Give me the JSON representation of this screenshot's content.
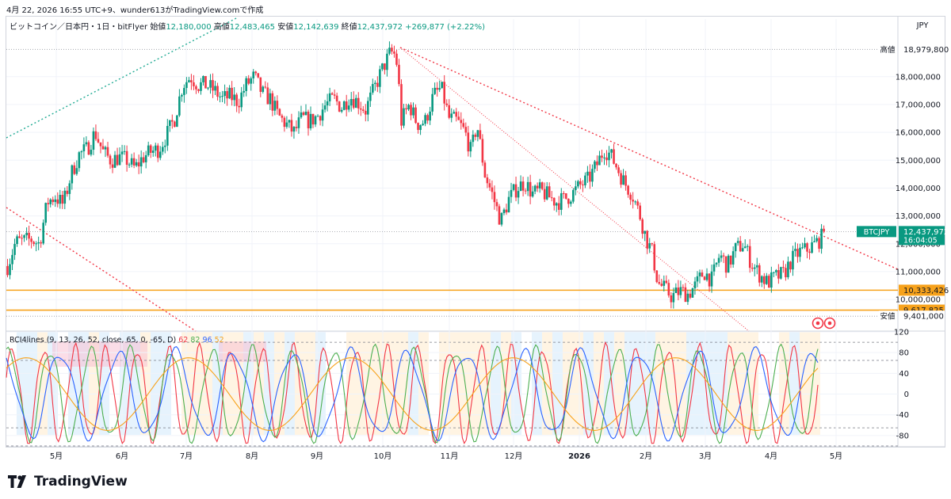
{
  "header": {
    "snapshot_line": "4月 22, 2026 16:55 UTC+9、wunder613がTradingView.comで作成"
  },
  "legend": {
    "symbol": "ビットコイン／日本円・1日・bitFlyer",
    "open_label": "始値",
    "open": "12,180,000",
    "high_label": "高値",
    "high": "12,483,465",
    "low_label": "安値",
    "low": "12,142,639",
    "close_label": "終値",
    "close": "12,437,972",
    "change": "+269,877 (+2.22%)"
  },
  "currency": "JPY",
  "colors": {
    "up": "#089981",
    "down": "#f23645",
    "support": "#f7a21b",
    "trend": "#f23645",
    "channel": "#22ab94",
    "rci_short": "#f23645",
    "rci_mid": "#4caf50",
    "rci_long": "#2962ff",
    "rci_extra": "#f7a21b"
  },
  "chart_data": [
    {
      "type": "candlestick",
      "title": "ビットコイン／日本円・1日・bitFlyer",
      "x_labels": [
        "5月",
        "6月",
        "7月",
        "8月",
        "9月",
        "10月",
        "11月",
        "12月",
        "2026",
        "2月",
        "3月",
        "4月",
        "5月"
      ],
      "y_ticks": [
        10000000,
        11000000,
        12000000,
        13000000,
        14000000,
        15000000,
        16000000,
        17000000,
        18000000
      ],
      "y_tick_labels": [
        "10,000,000",
        "11,000,000",
        "12,000,000",
        "13,000,000",
        "14,000,000",
        "15,000,000",
        "16,000,000",
        "17,000,000",
        "18,000,000"
      ],
      "ylim": [
        9150000,
        19500000
      ],
      "series_close_approx": [
        [
          0,
          11200000
        ],
        [
          8,
          12050000
        ],
        [
          16,
          12100000
        ],
        [
          24,
          12150000
        ],
        [
          32,
          12000000
        ],
        [
          40,
          13500000
        ],
        [
          48,
          13700000
        ],
        [
          56,
          13400000
        ],
        [
          64,
          14500000
        ],
        [
          72,
          15200000
        ],
        [
          80,
          15400000
        ],
        [
          88,
          16000000
        ],
        [
          96,
          15300000
        ],
        [
          104,
          15000000
        ],
        [
          112,
          15100000
        ],
        [
          120,
          15000000
        ],
        [
          128,
          14700000
        ],
        [
          136,
          15100000
        ],
        [
          144,
          15300000
        ],
        [
          152,
          15400000
        ],
        [
          160,
          15900000
        ],
        [
          168,
          16500000
        ],
        [
          176,
          17700000
        ],
        [
          184,
          18000000
        ],
        [
          192,
          17700000
        ],
        [
          200,
          17700000
        ],
        [
          208,
          17500000
        ],
        [
          216,
          17200000
        ],
        [
          224,
          17300000
        ],
        [
          232,
          17100000
        ],
        [
          240,
          17700000
        ],
        [
          248,
          18000000
        ],
        [
          256,
          17400000
        ],
        [
          264,
          17200000
        ],
        [
          272,
          16600000
        ],
        [
          280,
          16300000
        ],
        [
          288,
          16000000
        ],
        [
          296,
          16500000
        ],
        [
          304,
          16400000
        ],
        [
          312,
          16600000
        ],
        [
          320,
          17000000
        ],
        [
          328,
          17200000
        ],
        [
          336,
          16900000
        ],
        [
          344,
          17300000
        ],
        [
          352,
          17100000
        ],
        [
          360,
          16800000
        ],
        [
          368,
          17500000
        ],
        [
          376,
          18200000
        ],
        [
          384,
          18800000
        ],
        [
          388,
          18900000
        ],
        [
          392,
          18400000
        ],
        [
          396,
          16400000
        ],
        [
          404,
          17000000
        ],
        [
          412,
          16300000
        ],
        [
          420,
          16400000
        ],
        [
          428,
          17300000
        ],
        [
          436,
          17600000
        ],
        [
          444,
          16500000
        ],
        [
          452,
          16400000
        ],
        [
          460,
          16000000
        ],
        [
          466,
          15300000
        ],
        [
          472,
          16300000
        ],
        [
          480,
          14500000
        ],
        [
          488,
          13700000
        ],
        [
          496,
          12800000
        ],
        [
          504,
          13600000
        ],
        [
          512,
          14000000
        ],
        [
          520,
          14200000
        ],
        [
          528,
          13800000
        ],
        [
          536,
          13900000
        ],
        [
          544,
          13700000
        ],
        [
          552,
          13500000
        ],
        [
          560,
          13600000
        ],
        [
          568,
          13800000
        ],
        [
          576,
          14100000
        ],
        [
          584,
          14300000
        ],
        [
          592,
          14800000
        ],
        [
          600,
          15400000
        ],
        [
          606,
          15200000
        ],
        [
          612,
          14800000
        ],
        [
          620,
          14200000
        ],
        [
          628,
          13800000
        ],
        [
          636,
          13000000
        ],
        [
          642,
          12200000
        ],
        [
          648,
          11700000
        ],
        [
          654,
          10600000
        ],
        [
          660,
          10400000
        ],
        [
          668,
          10100000
        ],
        [
          676,
          10300000
        ],
        [
          684,
          10200000
        ],
        [
          692,
          10500000
        ],
        [
          700,
          11000000
        ],
        [
          708,
          10700000
        ],
        [
          716,
          11600000
        ],
        [
          724,
          11200000
        ],
        [
          732,
          11800000
        ],
        [
          740,
          12000000
        ],
        [
          748,
          11300000
        ],
        [
          756,
          10900000
        ],
        [
          764,
          10600000
        ],
        [
          772,
          10800000
        ],
        [
          780,
          10900000
        ],
        [
          788,
          11400000
        ],
        [
          796,
          11700000
        ],
        [
          804,
          11800000
        ],
        [
          812,
          12000000
        ],
        [
          818,
          12200000
        ],
        [
          822,
          12437972
        ]
      ],
      "annotations": [
        {
          "label": "高値",
          "value": "18,979,800",
          "y": 18979800
        },
        {
          "label": "BTCJPY",
          "value": "12,437,972",
          "y": 12437972,
          "sub": "16:04:05"
        },
        {
          "label": "",
          "value": "10,333,426",
          "y": 10333426
        },
        {
          "label": "",
          "value": "9,617,825",
          "y": 9617825
        },
        {
          "label": "安値",
          "value": "9,401,000",
          "y": 9401000
        }
      ],
      "support_levels": [
        10333426,
        9617825
      ]
    },
    {
      "type": "line",
      "title": "RCI4lines (9, 13, 26, 52, close, 65, 0, -65, D)",
      "legend_values": [
        "62",
        "82",
        "96",
        "52"
      ],
      "y_ticks": [
        -80,
        -40,
        0,
        40,
        80,
        120
      ],
      "ylim": [
        -100,
        120
      ],
      "levels": [
        100,
        65,
        -65,
        -100
      ]
    }
  ],
  "footer": {
    "brand": "TradingView"
  }
}
